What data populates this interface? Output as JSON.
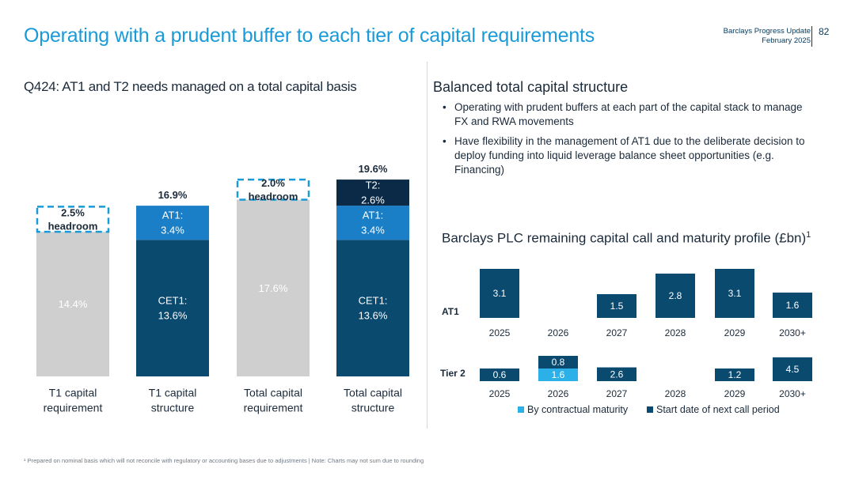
{
  "header": {
    "title": "Operating with a prudent buffer to each tier of capital requirements",
    "source_line1": "Barclays Progress Update",
    "source_line2": "February 2025",
    "page_number": "82"
  },
  "left_panel": {
    "subtitle": "Q424: AT1 and T2 needs managed on a total capital basis"
  },
  "right_panel": {
    "subtitle": "Balanced total capital structure",
    "bullets": [
      "Operating with prudent buffers at each part of the capital stack to manage FX and RWA movements",
      "Have flexibility in the management of AT1 due to the deliberate decision to deploy funding into liquid leverage balance sheet opportunities (e.g. Financing)"
    ],
    "maturity_title": "Barclays PLC remaining capital call and maturity profile (£bn)",
    "maturity_title_sup": "1"
  },
  "footnote": "¹ Prepared on nominal basis which will not reconcile with regulatory or accounting bases due to adjustments | Note: Charts may not sum due to rounding",
  "colors": {
    "accent": "#1a9ad6",
    "navy": "#0b4a6f",
    "dark_navy": "#0a2a47",
    "blue": "#1a7fc6",
    "light_blue": "#2bb0e8",
    "grey": "#cfcfcf"
  },
  "chart_data": [
    {
      "type": "bar",
      "stacked": true,
      "ylim": [
        0,
        20
      ],
      "categories": [
        "T1 capital requirement",
        "T1 capital structure",
        "Total capital requirement",
        "Total capital structure"
      ],
      "totals": [
        "",
        "16.9%",
        "",
        "19.6%"
      ],
      "bars": [
        {
          "category": "T1 capital requirement",
          "segments": [
            {
              "label": "14.4%",
              "value": 14.4,
              "color": "#cfcfcf"
            },
            {
              "label": "2.5%\nheadroom",
              "value": 2.5,
              "headroom": true
            }
          ]
        },
        {
          "category": "T1 capital structure",
          "segments": [
            {
              "label": "CET1:\n13.6%",
              "value": 13.6,
              "color": "#0b4a6f"
            },
            {
              "label": "AT1:\n3.4%",
              "value": 3.4,
              "color": "#1a7fc6"
            }
          ]
        },
        {
          "category": "Total capital requirement",
          "segments": [
            {
              "label": "17.6%",
              "value": 17.6,
              "color": "#cfcfcf"
            },
            {
              "label": "2.0%\nheadroom",
              "value": 2.0,
              "headroom": true
            }
          ]
        },
        {
          "category": "Total capital structure",
          "segments": [
            {
              "label": "CET1:\n13.6%",
              "value": 13.6,
              "color": "#0b4a6f"
            },
            {
              "label": "AT1:\n3.4%",
              "value": 3.4,
              "color": "#1a7fc6"
            },
            {
              "label": "T2:\n2.6%",
              "value": 2.6,
              "color": "#0a2a47"
            }
          ]
        }
      ]
    },
    {
      "type": "bar",
      "title": "Barclays PLC remaining capital call and maturity profile (£bn)",
      "categories": [
        "2025",
        "2026",
        "2027",
        "2028",
        "2029",
        "2030+"
      ],
      "legend": [
        "By contractual maturity",
        "Start date of next call period"
      ],
      "legend_position": "bottom",
      "rows": [
        {
          "name": "AT1",
          "series": [
            {
              "name": "Start date of next call period",
              "values": [
                3.1,
                null,
                1.5,
                2.8,
                3.1,
                1.6
              ]
            }
          ]
        },
        {
          "name": "Tier 2",
          "series": [
            {
              "name": "Start date of next call period",
              "values": [
                0.6,
                0.8,
                2.6,
                null,
                1.2,
                4.5
              ]
            },
            {
              "name": "By contractual maturity",
              "values": [
                null,
                1.6,
                null,
                null,
                null,
                null
              ]
            }
          ]
        }
      ]
    }
  ]
}
